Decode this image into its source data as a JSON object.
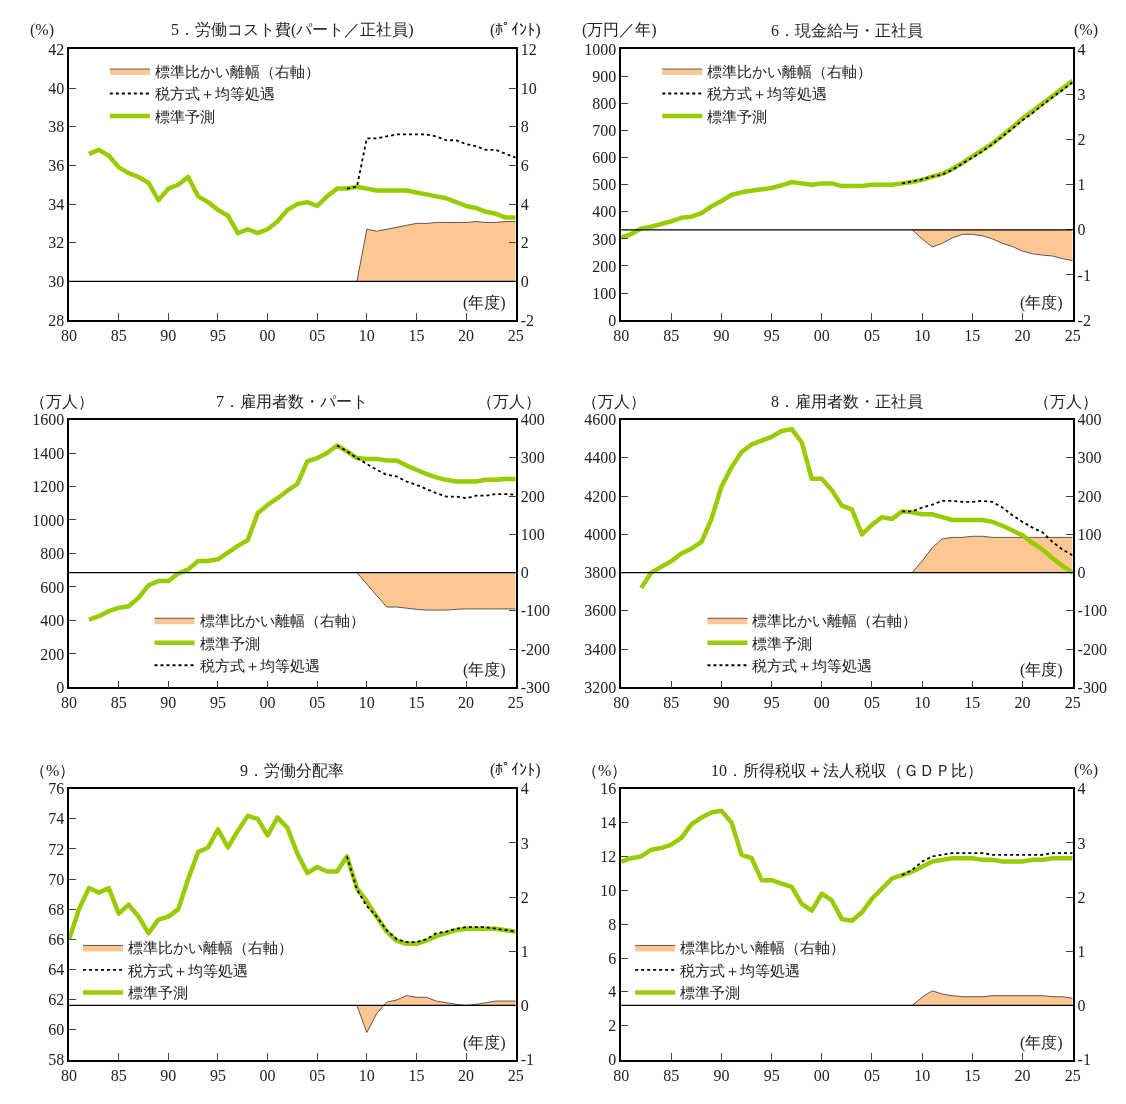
{
  "chart_data": [
    {
      "type": "line",
      "title": "5．労働コスト費(パート／正社員)",
      "ylabel": "(%)",
      "y2label": "(ﾎﾟｲﾝﾄ)",
      "annotations": [
        "(年度)"
      ],
      "xlim": [
        1980,
        2025
      ],
      "xticks": [
        {
          "value": 1980,
          "label": "80"
        },
        {
          "value": 1985,
          "label": "85"
        },
        {
          "value": 1990,
          "label": "90"
        },
        {
          "value": 1995,
          "label": "95"
        },
        {
          "value": 2000,
          "label": "00"
        },
        {
          "value": 2005,
          "label": "05"
        },
        {
          "value": 2010,
          "label": "10"
        },
        {
          "value": 2015,
          "label": "15"
        },
        {
          "value": 2020,
          "label": "20"
        },
        {
          "value": 2025,
          "label": "25"
        }
      ],
      "ylim": [
        28,
        42
      ],
      "yticks": [
        28,
        30,
        32,
        34,
        36,
        38,
        40,
        42
      ],
      "y2lim": [
        -2,
        12
      ],
      "y2ticks": [
        -2,
        0,
        2,
        4,
        6,
        8,
        10,
        12
      ],
      "ref_lines": [
        {
          "axis": "y2",
          "value": 0,
          "color": "#000000"
        }
      ],
      "legend": "top left",
      "series": [
        {
          "name": "標準比かい離幅（右軸）",
          "type": "area",
          "axis": "y2",
          "color": "#fdc793",
          "x": [
            2009,
            2010,
            2011,
            2012,
            2013,
            2014,
            2015,
            2016,
            2017,
            2018,
            2019,
            2020,
            2021,
            2022,
            2023,
            2024,
            2025
          ],
          "values": [
            0,
            2.7,
            2.6,
            2.7,
            2.8,
            2.9,
            3.0,
            3.0,
            3.05,
            3.05,
            3.05,
            3.05,
            3.1,
            3.05,
            3.05,
            3.1,
            3.1
          ]
        },
        {
          "name": "税方式＋均等処遇",
          "line_style": "dotted",
          "color": "#000000",
          "x": [
            2008,
            2009,
            2010,
            2011,
            2012,
            2013,
            2014,
            2015,
            2016,
            2017,
            2018,
            2019,
            2020,
            2021,
            2022,
            2023,
            2024,
            2025
          ],
          "values": [
            34.8,
            34.9,
            37.4,
            37.4,
            37.5,
            37.6,
            37.6,
            37.6,
            37.6,
            37.5,
            37.3,
            37.3,
            37.1,
            37.0,
            36.8,
            36.8,
            36.6,
            36.4
          ]
        },
        {
          "name": "標準予測",
          "type": "line",
          "line_style": "solid",
          "color": "#99cc00",
          "x": [
            1982,
            1983,
            1984,
            1985,
            1986,
            1987,
            1988,
            1989,
            1990,
            1991,
            1992,
            1993,
            1994,
            1995,
            1996,
            1997,
            1998,
            1999,
            2000,
            2001,
            2002,
            2003,
            2004,
            2005,
            2006,
            2007,
            2008,
            2009,
            2010,
            2011,
            2012,
            2013,
            2014,
            2015,
            2016,
            2017,
            2018,
            2019,
            2020,
            2021,
            2022,
            2023,
            2024,
            2025
          ],
          "values": [
            36.6,
            36.8,
            36.5,
            35.9,
            35.6,
            35.4,
            35.1,
            34.2,
            34.8,
            35.0,
            35.4,
            34.4,
            34.1,
            33.7,
            33.4,
            32.5,
            32.7,
            32.5,
            32.7,
            33.1,
            33.7,
            34.0,
            34.1,
            33.9,
            34.4,
            34.8,
            34.8,
            34.9,
            34.8,
            34.7,
            34.7,
            34.7,
            34.7,
            34.6,
            34.5,
            34.4,
            34.3,
            34.1,
            33.9,
            33.8,
            33.6,
            33.5,
            33.3,
            33.3
          ]
        }
      ]
    },
    {
      "type": "line",
      "title": "6．現金給与・正社員",
      "ylabel": "(万円／年)",
      "y2label": "(%)",
      "annotations": [
        "(年度)"
      ],
      "xlim": [
        1980,
        2025
      ],
      "xticks": [
        {
          "value": 1980,
          "label": "80"
        },
        {
          "value": 1985,
          "label": "85"
        },
        {
          "value": 1990,
          "label": "90"
        },
        {
          "value": 1995,
          "label": "95"
        },
        {
          "value": 2000,
          "label": "00"
        },
        {
          "value": 2005,
          "label": "05"
        },
        {
          "value": 2010,
          "label": "10"
        },
        {
          "value": 2015,
          "label": "15"
        },
        {
          "value": 2020,
          "label": "20"
        },
        {
          "value": 2025,
          "label": "25"
        }
      ],
      "ylim": [
        0,
        1000
      ],
      "yticks": [
        0,
        100,
        200,
        300,
        400,
        500,
        600,
        700,
        800,
        900,
        1000
      ],
      "y2lim": [
        -2,
        4
      ],
      "y2ticks": [
        -2,
        -1,
        0,
        1,
        2,
        3,
        4
      ],
      "ref_lines": [
        {
          "axis": "y2",
          "value": 0,
          "color": "#000000"
        }
      ],
      "legend": "top left",
      "series": [
        {
          "name": "標準比かい離幅（右軸）",
          "type": "area",
          "axis": "y2",
          "color": "#fdc793",
          "x": [
            2009,
            2010,
            2011,
            2012,
            2013,
            2014,
            2015,
            2016,
            2017,
            2018,
            2019,
            2020,
            2021,
            2022,
            2023,
            2024,
            2025
          ],
          "values": [
            0,
            -0.2,
            -0.38,
            -0.3,
            -0.18,
            -0.1,
            -0.1,
            -0.13,
            -0.2,
            -0.3,
            -0.37,
            -0.47,
            -0.53,
            -0.56,
            -0.58,
            -0.64,
            -0.68
          ]
        },
        {
          "name": "税方式＋均等処遇",
          "line_style": "dotted",
          "color": "#000000",
          "x": [
            2008,
            2009,
            2010,
            2011,
            2012,
            2013,
            2014,
            2015,
            2016,
            2017,
            2018,
            2019,
            2020,
            2021,
            2022,
            2023,
            2024,
            2025
          ],
          "values": [
            505,
            512,
            520,
            530,
            537,
            555,
            578,
            600,
            623,
            650,
            678,
            708,
            738,
            765,
            795,
            823,
            850,
            878
          ]
        },
        {
          "name": "標準予測",
          "type": "line",
          "line_style": "solid",
          "color": "#99cc00",
          "x": [
            1980,
            1981,
            1982,
            1983,
            1984,
            1985,
            1986,
            1987,
            1988,
            1989,
            1990,
            1991,
            1992,
            1993,
            1994,
            1995,
            1996,
            1997,
            1998,
            1999,
            2000,
            2001,
            2002,
            2003,
            2004,
            2005,
            2006,
            2007,
            2008,
            2009,
            2010,
            2011,
            2012,
            2013,
            2014,
            2015,
            2016,
            2017,
            2018,
            2019,
            2020,
            2021,
            2022,
            2023,
            2024,
            2025
          ],
          "values": [
            305,
            318,
            338,
            345,
            355,
            365,
            378,
            382,
            395,
            420,
            440,
            462,
            472,
            478,
            483,
            488,
            498,
            510,
            505,
            500,
            505,
            505,
            495,
            495,
            495,
            500,
            500,
            500,
            505,
            510,
            518,
            530,
            540,
            558,
            580,
            605,
            628,
            652,
            682,
            712,
            745,
            772,
            800,
            828,
            856,
            884
          ]
        }
      ]
    },
    {
      "type": "line",
      "title": "7．雇用者数・パート",
      "ylabel": "（万人）",
      "y2label": "（万人）",
      "annotations": [
        "(年度)"
      ],
      "xlim": [
        1980,
        2025
      ],
      "xticks": [
        {
          "value": 1980,
          "label": "80"
        },
        {
          "value": 1985,
          "label": "85"
        },
        {
          "value": 1990,
          "label": "90"
        },
        {
          "value": 1995,
          "label": "95"
        },
        {
          "value": 2000,
          "label": "00"
        },
        {
          "value": 2005,
          "label": "05"
        },
        {
          "value": 2010,
          "label": "10"
        },
        {
          "value": 2015,
          "label": "15"
        },
        {
          "value": 2020,
          "label": "20"
        },
        {
          "value": 2025,
          "label": "25"
        }
      ],
      "ylim": [
        0,
        1600
      ],
      "yticks": [
        0,
        200,
        400,
        600,
        800,
        1000,
        1200,
        1400,
        1600
      ],
      "y2lim": [
        -300,
        400
      ],
      "y2ticks": [
        -300,
        -200,
        -100,
        0,
        100,
        200,
        300,
        400
      ],
      "ref_lines": [
        {
          "axis": "y2",
          "value": 0,
          "color": "#000000"
        }
      ],
      "legend": "bottom left",
      "series": [
        {
          "name": "標準比かい離幅（右軸）",
          "type": "area",
          "axis": "y2",
          "color": "#fdc793",
          "x": [
            2009,
            2010,
            2011,
            2012,
            2013,
            2014,
            2015,
            2016,
            2017,
            2018,
            2019,
            2020,
            2021,
            2022,
            2023,
            2024,
            2025
          ],
          "values": [
            0,
            -30,
            -60,
            -90,
            -90,
            -93,
            -96,
            -98,
            -98,
            -98,
            -96,
            -95,
            -95,
            -95,
            -95,
            -95,
            -95
          ]
        },
        {
          "name": "標準予測",
          "type": "line",
          "line_style": "solid",
          "color": "#99cc00",
          "x": [
            1982,
            1983,
            1984,
            1985,
            1986,
            1987,
            1988,
            1989,
            1990,
            1991,
            1992,
            1993,
            1994,
            1995,
            1996,
            1997,
            1998,
            1999,
            2000,
            2001,
            2002,
            2003,
            2004,
            2005,
            2006,
            2007,
            2008,
            2009,
            2010,
            2011,
            2012,
            2013,
            2014,
            2015,
            2016,
            2017,
            2018,
            2019,
            2020,
            2021,
            2022,
            2023,
            2024,
            2025
          ],
          "values": [
            405,
            425,
            455,
            475,
            485,
            535,
            610,
            635,
            635,
            680,
            705,
            755,
            755,
            765,
            805,
            845,
            880,
            1040,
            1090,
            1130,
            1175,
            1215,
            1350,
            1370,
            1400,
            1445,
            1410,
            1370,
            1365,
            1365,
            1355,
            1355,
            1325,
            1300,
            1275,
            1255,
            1240,
            1230,
            1230,
            1230,
            1240,
            1240,
            1245,
            1245
          ]
        },
        {
          "name": "税方式＋均等処遇",
          "line_style": "dotted",
          "color": "#000000",
          "x": [
            2007,
            2008,
            2009,
            2010,
            2011,
            2012,
            2013,
            2014,
            2015,
            2016,
            2017,
            2018,
            2019,
            2020,
            2021,
            2022,
            2023,
            2024,
            2025
          ],
          "values": [
            1445,
            1410,
            1370,
            1335,
            1300,
            1270,
            1260,
            1230,
            1210,
            1185,
            1160,
            1140,
            1140,
            1130,
            1145,
            1145,
            1155,
            1155,
            1150
          ]
        }
      ]
    },
    {
      "type": "line",
      "title": "8．雇用者数・正社員",
      "ylabel": "（万人）",
      "y2label": "（万人）",
      "annotations": [
        "(年度)"
      ],
      "xlim": [
        1980,
        2025
      ],
      "xticks": [
        {
          "value": 1980,
          "label": "80"
        },
        {
          "value": 1985,
          "label": "85"
        },
        {
          "value": 1990,
          "label": "90"
        },
        {
          "value": 1995,
          "label": "95"
        },
        {
          "value": 2000,
          "label": "00"
        },
        {
          "value": 2005,
          "label": "05"
        },
        {
          "value": 2010,
          "label": "10"
        },
        {
          "value": 2015,
          "label": "15"
        },
        {
          "value": 2020,
          "label": "20"
        },
        {
          "value": 2025,
          "label": "25"
        }
      ],
      "ylim": [
        3200,
        4600
      ],
      "yticks": [
        3200,
        3400,
        3600,
        3800,
        4000,
        4200,
        4400,
        4600
      ],
      "y2lim": [
        -300,
        400
      ],
      "y2ticks": [
        -300,
        -200,
        -100,
        0,
        100,
        200,
        300,
        400
      ],
      "ref_lines": [
        {
          "axis": "y2",
          "value": 0,
          "color": "#000000"
        }
      ],
      "legend": "bottom left",
      "series": [
        {
          "name": "標準比かい離幅（右軸）",
          "type": "area",
          "axis": "y2",
          "color": "#fdc793",
          "x": [
            2009,
            2010,
            2011,
            2012,
            2013,
            2014,
            2015,
            2016,
            2017,
            2018,
            2019,
            2020,
            2021,
            2022,
            2023,
            2024,
            2025
          ],
          "values": [
            0,
            30,
            65,
            88,
            92,
            92,
            95,
            95,
            92,
            92,
            92,
            92,
            92,
            92,
            92,
            92,
            92
          ]
        },
        {
          "name": "標準予測",
          "type": "line",
          "line_style": "solid",
          "color": "#99cc00",
          "x": [
            1982,
            1983,
            1984,
            1985,
            1986,
            1987,
            1988,
            1989,
            1990,
            1991,
            1992,
            1993,
            1994,
            1995,
            1996,
            1997,
            1998,
            1999,
            2000,
            2001,
            2002,
            2003,
            2004,
            2005,
            2006,
            2007,
            2008,
            2009,
            2010,
            2011,
            2012,
            2013,
            2014,
            2015,
            2016,
            2017,
            2018,
            2019,
            2020,
            2021,
            2022,
            2023,
            2024,
            2025
          ],
          "values": [
            3720,
            3800,
            3830,
            3860,
            3900,
            3925,
            3960,
            4080,
            4250,
            4350,
            4430,
            4470,
            4490,
            4510,
            4540,
            4550,
            4480,
            4290,
            4290,
            4230,
            4150,
            4130,
            4000,
            4050,
            4090,
            4080,
            4120,
            4115,
            4105,
            4105,
            4090,
            4075,
            4075,
            4075,
            4075,
            4065,
            4045,
            4020,
            3995,
            3955,
            3920,
            3875,
            3835,
            3800
          ]
        },
        {
          "name": "税方式＋均等処遇",
          "line_style": "dotted",
          "color": "#000000",
          "x": [
            2008,
            2009,
            2010,
            2011,
            2012,
            2013,
            2014,
            2015,
            2016,
            2017,
            2018,
            2019,
            2020,
            2021,
            2022,
            2023,
            2024,
            2025
          ],
          "values": [
            4120,
            4120,
            4140,
            4155,
            4175,
            4175,
            4170,
            4170,
            4175,
            4170,
            4140,
            4100,
            4065,
            4035,
            4010,
            3960,
            3920,
            3890
          ]
        }
      ]
    },
    {
      "type": "line",
      "title": "9．労働分配率",
      "ylabel": "（%）",
      "y2label": "(ﾎﾟｲﾝﾄ)",
      "annotations": [
        "(年度)"
      ],
      "xlim": [
        1980,
        2025
      ],
      "xticks": [
        {
          "value": 1980,
          "label": "80"
        },
        {
          "value": 1985,
          "label": "85"
        },
        {
          "value": 1990,
          "label": "90"
        },
        {
          "value": 1995,
          "label": "95"
        },
        {
          "value": 2000,
          "label": "00"
        },
        {
          "value": 2005,
          "label": "05"
        },
        {
          "value": 2010,
          "label": "10"
        },
        {
          "value": 2015,
          "label": "15"
        },
        {
          "value": 2020,
          "label": "20"
        },
        {
          "value": 2025,
          "label": "25"
        }
      ],
      "ylim": [
        58,
        76
      ],
      "yticks": [
        58,
        60,
        62,
        64,
        66,
        68,
        70,
        72,
        74,
        76
      ],
      "y2lim": [
        -1,
        4
      ],
      "y2ticks": [
        -1,
        0,
        1,
        2,
        3,
        4
      ],
      "ref_lines": [
        {
          "axis": "y2",
          "value": 0,
          "color": "#000000"
        }
      ],
      "legend": "left",
      "series": [
        {
          "name": "標準比かい離幅（右軸）",
          "type": "area",
          "axis": "y2",
          "color": "#fdc793",
          "x": [
            2009,
            2010,
            2011,
            2012,
            2013,
            2014,
            2015,
            2016,
            2017,
            2018,
            2019,
            2020,
            2021,
            2022,
            2023,
            2024,
            2025
          ],
          "values": [
            0,
            -0.5,
            -0.15,
            0.06,
            0.1,
            0.18,
            0.15,
            0.15,
            0.08,
            0.05,
            0.02,
            0,
            0.02,
            0.05,
            0.08,
            0.08,
            0.08
          ]
        },
        {
          "name": "税方式＋均等処遇",
          "line_style": "dotted",
          "color": "#000000",
          "x": [
            2008,
            2009,
            2010,
            2011,
            2012,
            2013,
            2014,
            2015,
            2016,
            2017,
            2018,
            2019,
            2020,
            2021,
            2022,
            2023,
            2024,
            2025
          ],
          "values": [
            71.5,
            69.3,
            68.2,
            67.5,
            66.6,
            66.0,
            65.8,
            65.8,
            66.0,
            66.4,
            66.5,
            66.7,
            66.8,
            66.8,
            66.8,
            66.7,
            66.6,
            66.5
          ]
        },
        {
          "name": "標準予測",
          "type": "line",
          "line_style": "solid",
          "color": "#99cc00",
          "x": [
            1980,
            1981,
            1982,
            1983,
            1984,
            1985,
            1986,
            1987,
            1988,
            1989,
            1990,
            1991,
            1992,
            1993,
            1994,
            1995,
            1996,
            1997,
            1998,
            1999,
            2000,
            2001,
            2002,
            2003,
            2004,
            2005,
            2006,
            2007,
            2008,
            2009,
            2010,
            2011,
            2012,
            2013,
            2014,
            2015,
            2016,
            2017,
            2018,
            2019,
            2020,
            2021,
            2022,
            2023,
            2024,
            2025
          ],
          "values": [
            66.0,
            68.0,
            69.4,
            69.1,
            69.4,
            67.7,
            68.3,
            67.5,
            66.4,
            67.3,
            67.5,
            68.0,
            70.0,
            71.8,
            72.1,
            73.3,
            72.1,
            73.2,
            74.2,
            74.0,
            72.9,
            74.1,
            73.4,
            71.7,
            70.4,
            70.8,
            70.5,
            70.5,
            71.5,
            69.4,
            68.5,
            67.5,
            66.5,
            65.9,
            65.7,
            65.7,
            65.9,
            66.2,
            66.4,
            66.6,
            66.7,
            66.7,
            66.7,
            66.7,
            66.6,
            66.5
          ]
        }
      ]
    },
    {
      "type": "line",
      "title": "10．所得税収＋法人税収（ＧＤＰ比）",
      "ylabel": "（%）",
      "y2label": "(%)",
      "annotations": [
        "(年度)"
      ],
      "xlim": [
        1980,
        2025
      ],
      "xticks": [
        {
          "value": 1980,
          "label": "80"
        },
        {
          "value": 1985,
          "label": "85"
        },
        {
          "value": 1990,
          "label": "90"
        },
        {
          "value": 1995,
          "label": "95"
        },
        {
          "value": 2000,
          "label": "00"
        },
        {
          "value": 2005,
          "label": "05"
        },
        {
          "value": 2010,
          "label": "10"
        },
        {
          "value": 2015,
          "label": "15"
        },
        {
          "value": 2020,
          "label": "20"
        },
        {
          "value": 2025,
          "label": "25"
        }
      ],
      "ylim": [
        0,
        16
      ],
      "yticks": [
        0,
        2,
        4,
        6,
        8,
        10,
        12,
        14,
        16
      ],
      "y2lim": [
        -1,
        4
      ],
      "y2ticks": [
        -1,
        0,
        1,
        2,
        3,
        4
      ],
      "ref_lines": [
        {
          "axis": "y2",
          "value": 0,
          "color": "#000000"
        }
      ],
      "legend": "left",
      "series": [
        {
          "name": "標準比かい離幅（右軸）",
          "type": "area",
          "axis": "y2",
          "color": "#fdc793",
          "x": [
            2009,
            2010,
            2011,
            2012,
            2013,
            2014,
            2015,
            2016,
            2017,
            2018,
            2019,
            2020,
            2021,
            2022,
            2023,
            2024,
            2025
          ],
          "values": [
            0,
            0.15,
            0.27,
            0.21,
            0.18,
            0.16,
            0.16,
            0.16,
            0.18,
            0.18,
            0.18,
            0.18,
            0.18,
            0.18,
            0.16,
            0.16,
            0.13
          ]
        },
        {
          "name": "税方式＋均等処遇",
          "line_style": "dotted",
          "color": "#000000",
          "x": [
            2008,
            2009,
            2010,
            2011,
            2012,
            2013,
            2014,
            2015,
            2016,
            2017,
            2018,
            2019,
            2020,
            2021,
            2022,
            2023,
            2024,
            2025
          ],
          "values": [
            10.9,
            11.2,
            11.7,
            12.0,
            12.1,
            12.2,
            12.2,
            12.2,
            12.2,
            12.1,
            12.1,
            12.1,
            12.1,
            12.1,
            12.1,
            12.2,
            12.2,
            12.2
          ]
        },
        {
          "name": "標準予測",
          "type": "line",
          "line_style": "solid",
          "color": "#99cc00",
          "x": [
            1980,
            1981,
            1982,
            1983,
            1984,
            1985,
            1986,
            1987,
            1988,
            1989,
            1990,
            1991,
            1992,
            1993,
            1994,
            1995,
            1996,
            1997,
            1998,
            1999,
            2000,
            2001,
            2002,
            2003,
            2004,
            2005,
            2006,
            2007,
            2008,
            2009,
            2010,
            2011,
            2012,
            2013,
            2014,
            2015,
            2016,
            2017,
            2018,
            2019,
            2020,
            2021,
            2022,
            2023,
            2024,
            2025
          ],
          "values": [
            11.7,
            11.9,
            12.0,
            12.4,
            12.5,
            12.7,
            13.1,
            13.9,
            14.3,
            14.6,
            14.7,
            14.0,
            12.1,
            11.9,
            10.6,
            10.6,
            10.4,
            10.2,
            9.2,
            8.8,
            9.8,
            9.4,
            8.3,
            8.2,
            8.7,
            9.5,
            10.1,
            10.7,
            10.9,
            11.1,
            11.4,
            11.7,
            11.8,
            11.9,
            11.9,
            11.9,
            11.8,
            11.8,
            11.7,
            11.7,
            11.7,
            11.8,
            11.8,
            11.9,
            11.9,
            11.9
          ]
        }
      ]
    }
  ]
}
